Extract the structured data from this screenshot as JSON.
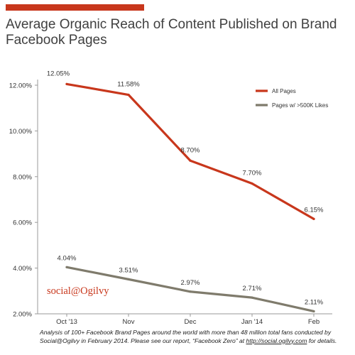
{
  "title": "Average Organic Reach of Content Published on Brand Facebook Pages",
  "brand": "social@Ogilvy",
  "footnote": {
    "text_1": "Analysis of 100+ Facebook Brand Pages around the world with more than 48 million total fans conducted by Social@Ogilvy in February 2014. Please see our report, “Facebook Zero” at ",
    "url": "http://social.ogilvy.com",
    "text_2": " for details."
  },
  "colors": {
    "accent_bar": "#c8371c",
    "all_pages": "#c8371c",
    "pages_500k": "#7f7b6c",
    "axis": "#9a9a9a",
    "label": "#333333",
    "brand": "#c8371c"
  },
  "chart_data": {
    "type": "line",
    "categories": [
      "Oct '13",
      "Nov",
      "Dec",
      "Jan '14",
      "Feb"
    ],
    "ylim": [
      2,
      12
    ],
    "y_ticks": [
      2,
      4,
      6,
      8,
      10,
      12
    ],
    "y_tick_labels": [
      "2.00%",
      "4.00%",
      "6.00%",
      "8.00%",
      "10.00%",
      "12.00%"
    ],
    "grid": false,
    "legend_position": "top-right",
    "xlabel": "",
    "ylabel": "",
    "series": [
      {
        "name": "All Pages",
        "color": "#c8371c",
        "values": [
          12.05,
          11.58,
          8.7,
          7.7,
          6.15
        ],
        "labels": [
          "12.05%",
          "11.58%",
          "8.70%",
          "7.70%",
          "6.15%"
        ]
      },
      {
        "name": "Pages w/ >500K Likes",
        "color": "#7f7b6c",
        "values": [
          4.04,
          3.51,
          2.97,
          2.71,
          2.11
        ],
        "labels": [
          "4.04%",
          "3.51%",
          "2.97%",
          "2.71%",
          "2.11%"
        ]
      }
    ]
  }
}
